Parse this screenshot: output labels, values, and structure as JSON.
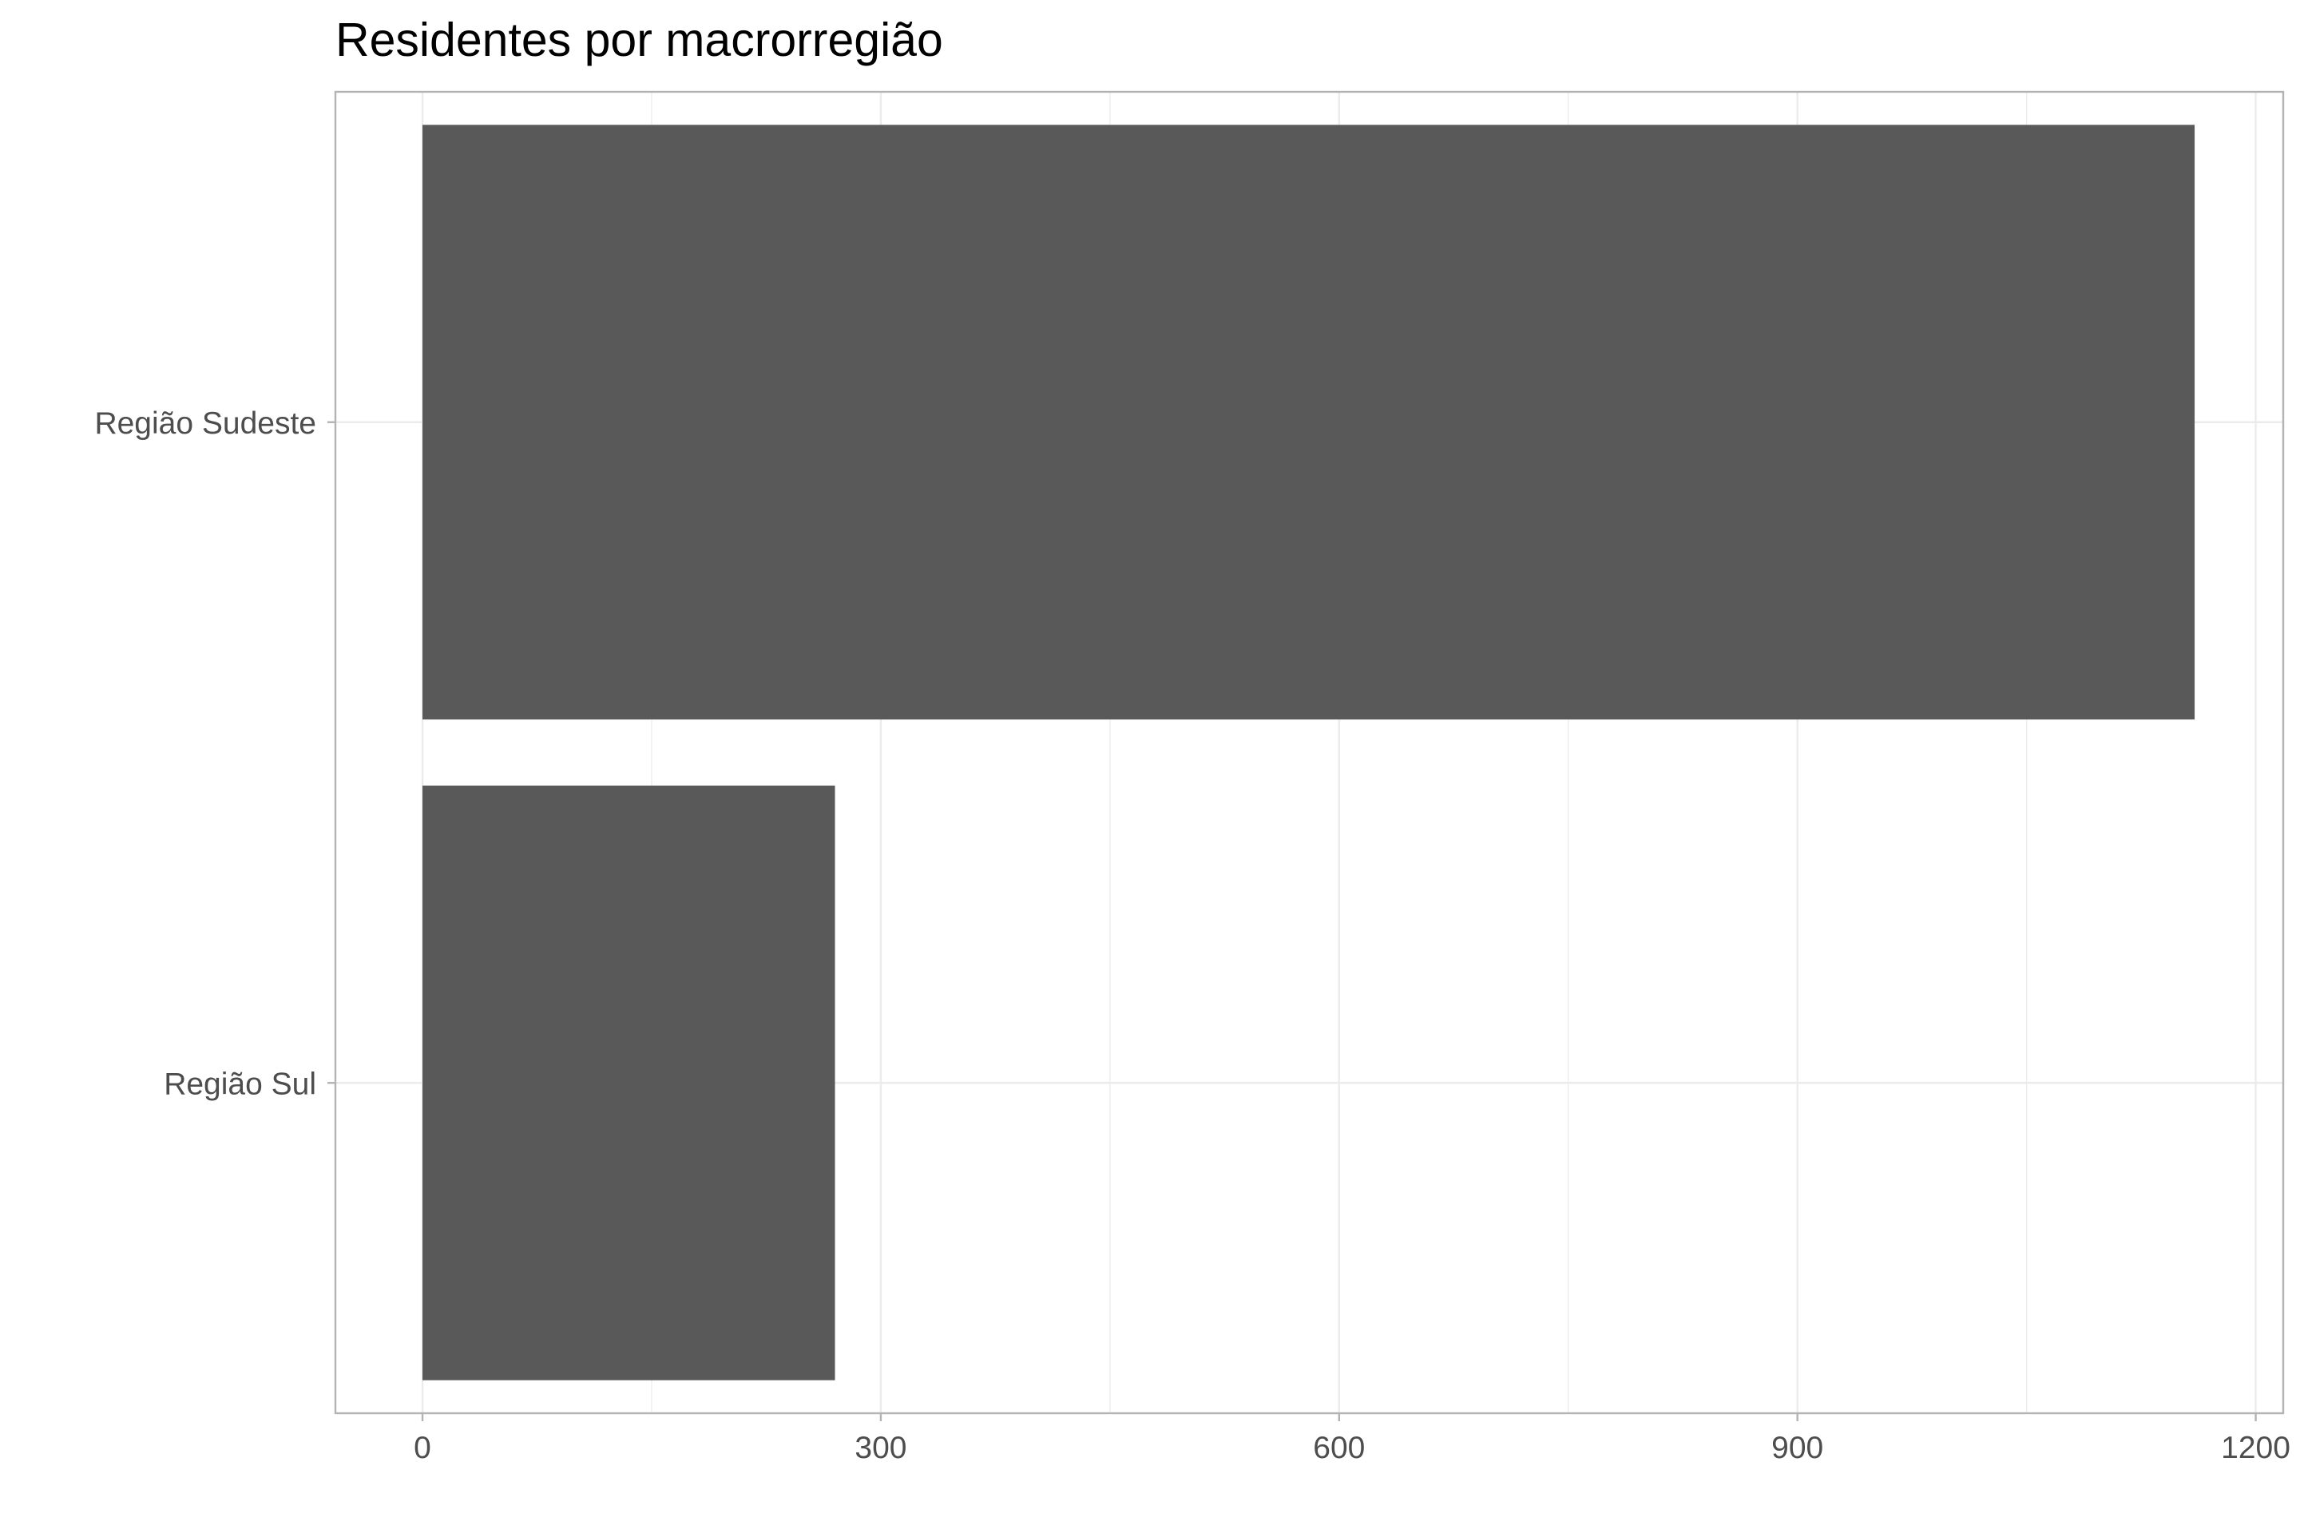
{
  "chart_data": {
    "type": "bar",
    "orientation": "horizontal",
    "title": "Residentes por macrorregião",
    "xlabel": "",
    "ylabel": "",
    "categories": [
      "Região Sudeste",
      "Região Sul"
    ],
    "values": [
      1160,
      270
    ],
    "xlim": [
      -57,
      1218
    ],
    "xticks": [
      "0",
      "300",
      "600",
      "900",
      "1200"
    ],
    "grid": true,
    "legend": "none",
    "colors": {
      "bar": "#595959",
      "grid": "#ebebeb",
      "panel_border": "#b3b3b3",
      "text": "#4d4d4d"
    }
  }
}
